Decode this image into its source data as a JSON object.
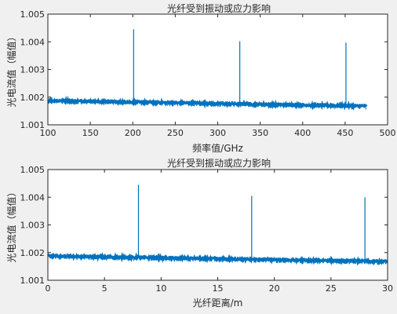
{
  "chart_data": [
    {
      "type": "line",
      "title": "光纤受到振动或应力影响",
      "xlabel": "频率值/GHz",
      "ylabel": "光电流值（幅值）",
      "xlim": [
        100,
        500
      ],
      "ylim": [
        1.001,
        1.005
      ],
      "xticks": [
        100,
        150,
        200,
        250,
        300,
        350,
        400,
        450,
        500
      ],
      "xtick_labels": [
        "100",
        "150",
        "200",
        "250",
        "300",
        "350",
        "400",
        "450",
        "500"
      ],
      "yticks": [
        1.001,
        1.002,
        1.003,
        1.004,
        1.005
      ],
      "ytick_labels": [
        "1.001",
        "1.002",
        "1.003",
        "1.004",
        "1.005"
      ],
      "grid": false,
      "series": [
        {
          "color": "#0072bd",
          "x_range": [
            100,
            475
          ],
          "baseline_start": 1.0019,
          "baseline_end": 1.0017,
          "noise_amplitude": 0.00012,
          "peaks": [
            {
              "x": 201,
              "y": 1.00445
            },
            {
              "x": 326,
              "y": 1.00402
            },
            {
              "x": 451,
              "y": 1.00397
            }
          ]
        }
      ]
    },
    {
      "type": "line",
      "title": "光纤受到振动或应力影响",
      "xlabel": "光纤距离/m",
      "ylabel": "光电流值（幅值）",
      "xlim": [
        0,
        30
      ],
      "ylim": [
        1.001,
        1.005
      ],
      "xticks": [
        0,
        5,
        10,
        15,
        20,
        25,
        30
      ],
      "xtick_labels": [
        "0",
        "5",
        "10",
        "15",
        "20",
        "25",
        "30"
      ],
      "yticks": [
        1.001,
        1.002,
        1.003,
        1.004,
        1.005
      ],
      "ytick_labels": [
        "1.001",
        "1.002",
        "1.003",
        "1.004",
        "1.005"
      ],
      "grid": false,
      "series": [
        {
          "color": "#0072bd",
          "x_range": [
            0,
            30
          ],
          "baseline_start": 1.0019,
          "baseline_end": 1.0017,
          "noise_amplitude": 0.00012,
          "peaks": [
            {
              "x": 8,
              "y": 1.00445
            },
            {
              "x": 18,
              "y": 1.00405
            },
            {
              "x": 28,
              "y": 1.004
            }
          ]
        }
      ]
    }
  ]
}
